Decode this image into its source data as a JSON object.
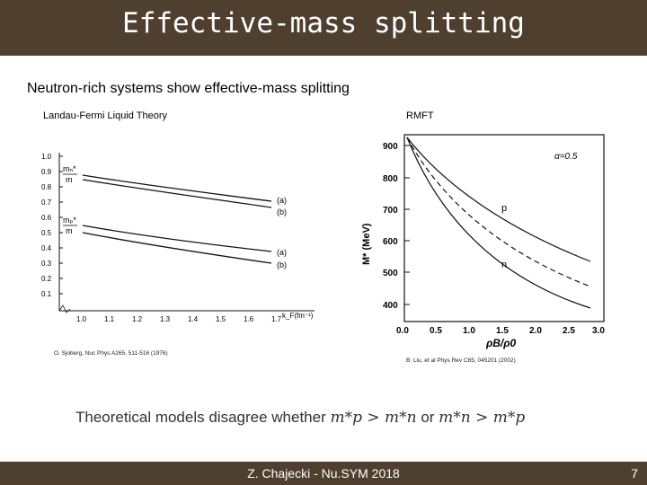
{
  "slide": {
    "title": "Effective-mass splitting",
    "subtitle": "Neutron-rich systems show effective-mass splitting",
    "bottom_prefix": "Theoretical models disagree whether ",
    "bottom_expr1": "m*p > m*n",
    "bottom_or": " or ",
    "bottom_expr2": "m*n > m*p",
    "footer": "Z. Chajecki - Nu.SYM 2018",
    "page": "7"
  },
  "left_panel": {
    "label": "Landau-Fermi Liquid Theory",
    "citation": "O. Sjoberg, Nuc Phys A265, 511-516 (1976)",
    "y_ticks": [
      "1.0",
      "0.9",
      "0.8",
      "0.7",
      "0.6",
      "0.5",
      "0.4",
      "0.3",
      "0.2",
      "0.1"
    ],
    "x_ticks": [
      "1.0",
      "1.1",
      "1.2",
      "1.3",
      "1.4",
      "1.5",
      "1.6",
      "1.7"
    ],
    "x_unit": "k_F(fm⁻¹)",
    "curve_labels": [
      "(a)",
      "(b)",
      "(a)",
      "(b)"
    ],
    "frac_n_top": "mₙ*",
    "frac_n_bot": "m",
    "frac_p_top": "mₚ*",
    "frac_p_bot": "m"
  },
  "right_panel": {
    "label": "RMFT",
    "citation": "B. Liu, et al Phys Rev C65, 045201 (2002)",
    "y_ticks": [
      "900",
      "800",
      "700",
      "600",
      "500",
      "400"
    ],
    "x_ticks": [
      "0.0",
      "0.5",
      "1.0",
      "1.5",
      "2.0",
      "2.5",
      "3.0"
    ],
    "ylabel": "M* (MeV)",
    "xlabel": "ρB/ρ0",
    "alpha": "α=0.5",
    "curve_p": "p",
    "curve_n": "n"
  },
  "colors": {
    "bar": "#4f3f2f",
    "text_white": "#ffffff"
  }
}
